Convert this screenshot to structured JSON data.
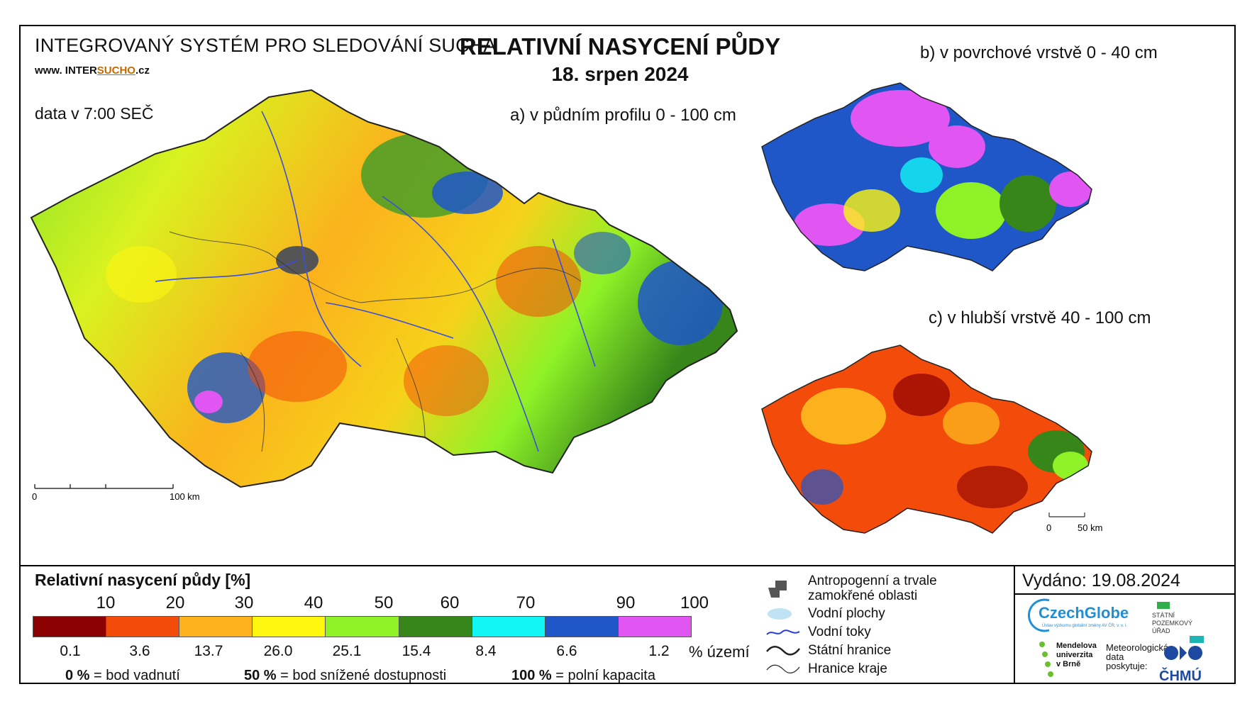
{
  "header": {
    "system_title": "INTEGROVANÝ SYSTÉM PRO SLEDOVÁNÍ SUCHA",
    "site_prefix": "www. INTER",
    "site_u": "SUCHO",
    "site_suffix": ".cz",
    "data_time": "data v 7:00 SEČ",
    "main_title": "RELATIVNÍ NASYCENÍ PŮDY",
    "main_date": "18. srpen 2024"
  },
  "panels": {
    "a_title": "a) v půdním profilu 0 - 100 cm",
    "b_title": "b) v povrchové vrstvě 0 - 40 cm",
    "c_title": "c) v hlubší vrstvě 40 - 100 cm",
    "scale_a_start": "0",
    "scale_a_end": "100 km",
    "scale_c_start": "0",
    "scale_c_end": "50 km"
  },
  "legend": {
    "title": "Relativní nasycení půdy [%]",
    "colors": [
      "#8b0000",
      "#f24b0a",
      "#fbb21c",
      "#fdf710",
      "#8ef227",
      "#36861a",
      "#12f5f5",
      "#1f57c9",
      "#e156f2"
    ],
    "ticks": [
      "10",
      "20",
      "30",
      "40",
      "50",
      "60",
      "70",
      "90",
      "100"
    ],
    "percents": [
      "0.1",
      "3.6",
      "13.7",
      "26.0",
      "25.1",
      "15.4",
      "8.4",
      "6.6",
      "1.2"
    ],
    "percent_unit": "% území",
    "notes": [
      {
        "value": "0 %",
        "label": "= bod vadnutí"
      },
      {
        "value": "50 %",
        "label": "= bod snížené dostupnosti"
      },
      {
        "value": "100 %",
        "label": "= polní kapacita"
      }
    ]
  },
  "map_legend": {
    "anthro_line1": "Antropogenní a trvale",
    "anthro_line2": "zamokřené oblasti",
    "water_areas": "Vodní plochy",
    "streams": "Vodní toky",
    "state_border": "Státní hranice",
    "region_border": "Hranice kraje",
    "colors": {
      "anthro": "#555555",
      "water": "#bfe3f2",
      "stream": "#2a3fd6"
    }
  },
  "footer": {
    "issued": "Vydáno: 19.08.2024",
    "czechglobe": "CzechGlobe",
    "czechglobe_sub": "Ústav výzkumu globální změny AV ČR, v. v. i.",
    "spu_1": "STÁTNÍ",
    "spu_2": "POZEMKOVÝ",
    "spu_3": "ÚŘAD",
    "mendel_1": "Mendelova",
    "mendel_2": "univerzita",
    "mendel_3": "v Brně",
    "met_1": "Meteorologická",
    "met_2": "data",
    "met_3": "poskytuje:",
    "chmu": "ČHMÚ"
  }
}
